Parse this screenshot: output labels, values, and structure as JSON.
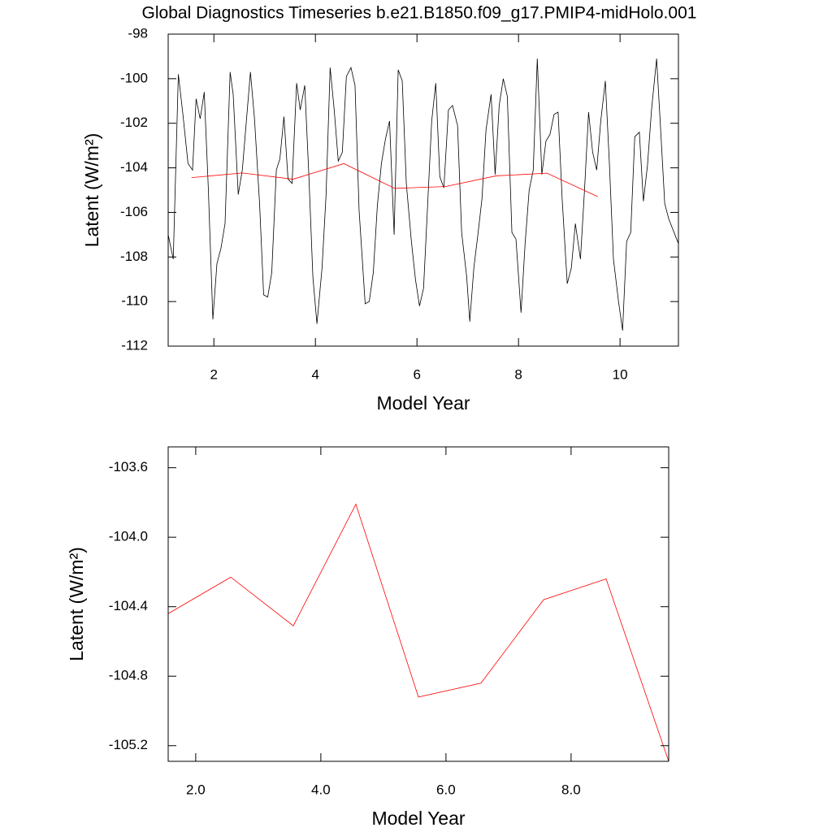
{
  "chart_data": [
    {
      "type": "line",
      "title": "Global Diagnostics Timeseries b.e21.B1850.f09_g17.PMIP4-midHolo.001",
      "xlabel": "Model Year",
      "ylabel": "Latent (W/m²)",
      "xlim": [
        1.1,
        11.15
      ],
      "xticks": [
        2,
        4,
        6,
        8,
        10
      ],
      "ylim": [
        -112,
        -98
      ],
      "yticks": [
        -98,
        -100,
        -102,
        -104,
        -106,
        -108,
        -110,
        -112
      ],
      "series": [
        {
          "color": "#000000",
          "x": [
            1.1,
            1.2,
            1.3,
            1.39,
            1.49,
            1.58,
            1.65,
            1.73,
            1.81,
            1.89,
            1.98,
            2.06,
            2.14,
            2.22,
            2.32,
            2.38,
            2.48,
            2.56,
            2.64,
            2.72,
            2.8,
            2.9,
            2.98,
            3.06,
            3.14,
            3.23,
            3.3,
            3.38,
            3.46,
            3.54,
            3.63,
            3.7,
            3.79,
            3.87,
            3.95,
            4.03,
            4.13,
            4.21,
            4.29,
            4.37,
            4.45,
            4.53,
            4.61,
            4.7,
            4.78,
            4.86,
            4.98,
            5.06,
            5.14,
            5.22,
            5.3,
            5.38,
            5.46,
            5.55,
            5.63,
            5.71,
            5.79,
            5.89,
            5.97,
            6.05,
            6.13,
            6.22,
            6.29,
            6.37,
            6.45,
            6.53,
            6.62,
            6.7,
            6.8,
            6.88,
            6.98,
            7.04,
            7.12,
            7.2,
            7.28,
            7.36,
            7.46,
            7.54,
            7.62,
            7.7,
            7.78,
            7.87,
            7.95,
            8.05,
            8.13,
            8.21,
            8.29,
            8.37,
            8.46,
            8.54,
            8.62,
            8.7,
            8.78,
            8.86,
            8.96,
            9.04,
            9.12,
            9.22,
            9.3,
            9.38,
            9.46,
            9.54,
            9.62,
            9.71,
            9.79,
            9.87,
            9.97,
            10.05,
            10.13,
            10.21,
            10.29,
            10.38,
            10.46,
            10.54,
            10.62,
            10.72,
            10.8,
            10.88,
            10.96,
            11.15
          ],
          "values": [
            -107.0,
            -108.1,
            -99.8,
            -101.6,
            -103.8,
            -104.1,
            -100.9,
            -101.8,
            -100.6,
            -104.9,
            -110.8,
            -108.3,
            -107.6,
            -106.5,
            -99.7,
            -100.7,
            -105.2,
            -104.1,
            -101.9,
            -99.7,
            -101.8,
            -105.6,
            -109.7,
            -109.8,
            -108.7,
            -104.1,
            -103.6,
            -101.7,
            -104.5,
            -104.7,
            -100.2,
            -101.4,
            -100.3,
            -104.3,
            -108.9,
            -111.0,
            -108.5,
            -105.2,
            -99.5,
            -101.4,
            -103.7,
            -103.3,
            -99.9,
            -99.5,
            -100.3,
            -105.9,
            -110.1,
            -110.0,
            -108.7,
            -105.7,
            -103.8,
            -102.7,
            -101.9,
            -107.0,
            -99.6,
            -100.1,
            -104.7,
            -107.3,
            -109.0,
            -110.2,
            -109.4,
            -105.2,
            -101.9,
            -100.2,
            -104.4,
            -104.9,
            -101.4,
            -101.2,
            -102.1,
            -106.9,
            -108.9,
            -110.9,
            -108.5,
            -107.0,
            -105.4,
            -102.3,
            -100.7,
            -104.3,
            -101.2,
            -100.0,
            -100.8,
            -106.9,
            -107.2,
            -110.5,
            -107.4,
            -105.0,
            -104.1,
            -99.1,
            -104.3,
            -102.8,
            -102.5,
            -101.6,
            -101.5,
            -105.4,
            -109.2,
            -108.5,
            -106.5,
            -108.1,
            -105.0,
            -101.5,
            -103.3,
            -104.1,
            -101.9,
            -100.1,
            -103.8,
            -108.1,
            -110.0,
            -111.3,
            -107.3,
            -106.9,
            -102.6,
            -102.4,
            -105.5,
            -103.9,
            -101.4,
            -99.1,
            -102.3,
            -105.6,
            -106.3,
            -107.4
          ]
        },
        {
          "color": "#ff0000",
          "x": [
            1.56,
            2.56,
            3.56,
            4.56,
            5.56,
            6.56,
            7.56,
            8.56,
            9.56
          ],
          "values": [
            -104.44,
            -104.23,
            -104.51,
            -103.81,
            -104.92,
            -104.84,
            -104.36,
            -104.24,
            -105.29
          ]
        }
      ]
    },
    {
      "type": "line",
      "xlabel": "Model Year",
      "ylabel": "Latent (W/m²)",
      "xlim": [
        1.56,
        9.56
      ],
      "xticks": [
        {
          "value": 2,
          "label": "2.0"
        },
        {
          "value": 4,
          "label": "4.0"
        },
        {
          "value": 6,
          "label": "6.0"
        },
        {
          "value": 8,
          "label": "8.0"
        }
      ],
      "ylim": [
        -105.29,
        -103.48
      ],
      "yticks": [
        -103.6,
        {
          "value": -104,
          "label": "-104.0"
        },
        -104.4,
        -104.8,
        -105.2
      ],
      "series": [
        {
          "color": "#ff0000",
          "x": [
            1.56,
            2.56,
            3.56,
            4.56,
            5.56,
            6.56,
            7.56,
            8.56,
            9.56
          ],
          "values": [
            -104.44,
            -104.23,
            -104.51,
            -103.81,
            -104.92,
            -104.84,
            -104.36,
            -104.24,
            -105.29
          ]
        }
      ]
    }
  ]
}
